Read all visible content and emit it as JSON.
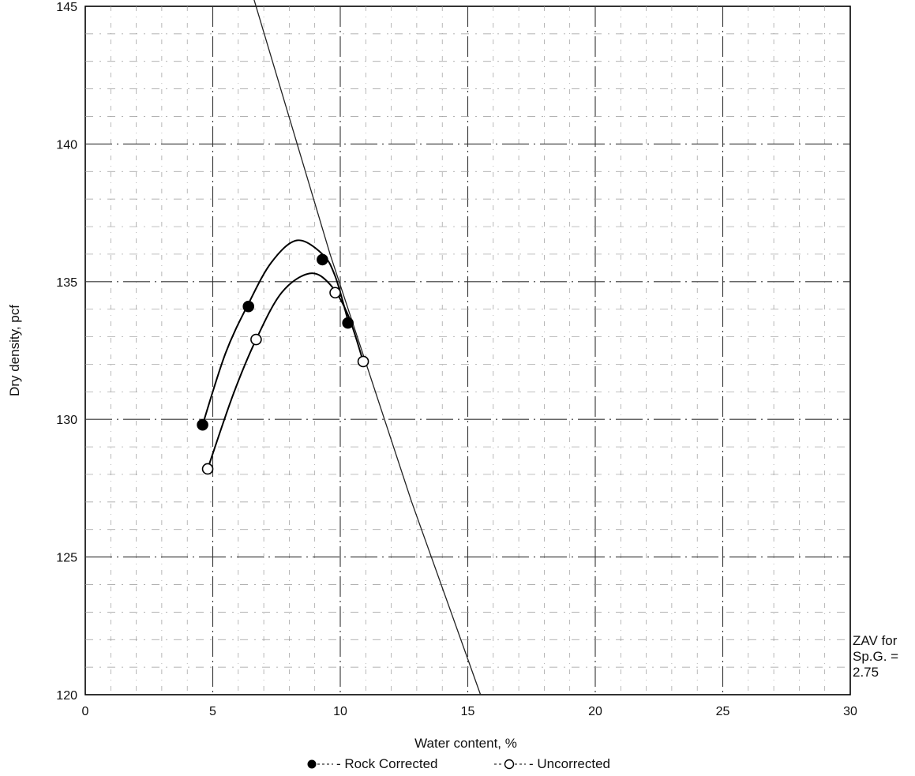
{
  "chart_data": {
    "type": "scatter",
    "xlabel": "Water content, %",
    "ylabel": "Dry density, pcf",
    "xlim": [
      0,
      30
    ],
    "ylim": [
      120,
      145
    ],
    "x_ticks": [
      0,
      5,
      10,
      15,
      20,
      25,
      30
    ],
    "y_ticks": [
      120,
      125,
      130,
      135,
      140,
      145
    ],
    "grid": true,
    "series": [
      {
        "name": "Rock Corrected",
        "marker": "filled-circle",
        "points": [
          [
            4.6,
            129.8
          ],
          [
            6.4,
            134.1
          ],
          [
            9.3,
            135.8
          ],
          [
            10.3,
            133.5
          ]
        ],
        "fit_curve": [
          [
            4.6,
            129.8
          ],
          [
            5.5,
            132.4
          ],
          [
            6.4,
            134.2
          ],
          [
            7.3,
            135.7
          ],
          [
            8.3,
            136.5
          ],
          [
            9.3,
            136.0
          ],
          [
            9.8,
            135.2
          ],
          [
            10.3,
            133.6
          ]
        ]
      },
      {
        "name": "Uncorrected",
        "marker": "open-circle",
        "points": [
          [
            4.8,
            128.2
          ],
          [
            6.7,
            132.9
          ],
          [
            9.8,
            134.6
          ],
          [
            10.9,
            132.1
          ]
        ],
        "fit_curve": [
          [
            4.8,
            128.2
          ],
          [
            5.8,
            130.9
          ],
          [
            6.7,
            132.9
          ],
          [
            7.7,
            134.6
          ],
          [
            8.8,
            135.3
          ],
          [
            9.6,
            134.9
          ],
          [
            10.3,
            133.8
          ],
          [
            10.9,
            132.1
          ]
        ]
      }
    ],
    "zav_curve": {
      "label_lines": [
        "ZAV for",
        "Sp.G. =",
        "2.75"
      ],
      "points": [
        [
          6.6,
          145.3
        ],
        [
          9.6,
          136.0
        ],
        [
          12.8,
          127.0
        ],
        [
          15.5,
          120.0
        ]
      ]
    },
    "legend": {
      "placement": "bottom",
      "items": [
        {
          "symbol": "filled-circle",
          "text": "- Rock Corrected"
        },
        {
          "symbol": "open-circle",
          "text": "- Uncorrected"
        }
      ]
    }
  }
}
